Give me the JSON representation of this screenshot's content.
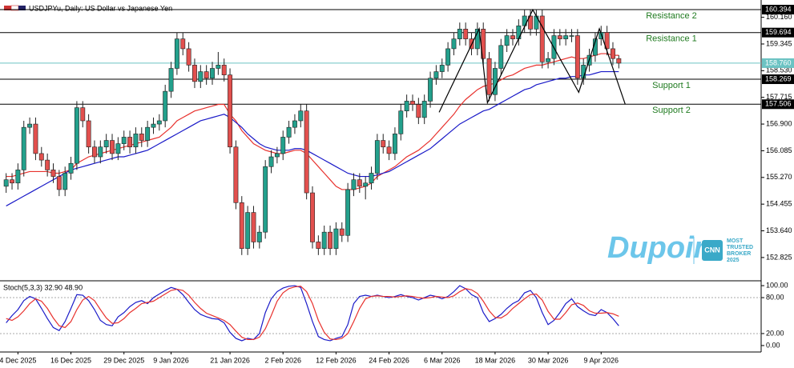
{
  "chart_data": [
    {
      "type": "candlestick",
      "title": "USDJPYu, Daily:  US Dollar vs Japanese Yen",
      "categories": [
        null,
        null,
        "4 Dec 2025",
        null,
        null,
        null,
        null,
        null,
        null,
        null,
        null,
        "16 Dec 2025",
        null,
        null,
        null,
        null,
        null,
        null,
        null,
        null,
        "29 Dec 2025",
        null,
        null,
        null,
        null,
        null,
        null,
        null,
        "9 Jan 2026",
        null,
        null,
        null,
        null,
        null,
        null,
        null,
        null,
        null,
        "21 Jan 2026",
        null,
        null,
        null,
        null,
        null,
        null,
        null,
        null,
        "2 Feb 2026",
        null,
        null,
        null,
        null,
        null,
        null,
        null,
        null,
        "12 Feb 2026",
        null,
        null,
        null,
        null,
        null,
        null,
        null,
        null,
        "24 Feb 2026",
        null,
        null,
        null,
        null,
        null,
        null,
        null,
        null,
        "6 Mar 2026",
        null,
        null,
        null,
        null,
        null,
        null,
        null,
        null,
        "18 Mar 2026",
        null,
        null,
        null,
        null,
        null,
        null,
        null,
        null,
        "30 Mar 2026",
        null,
        null,
        null,
        null,
        null,
        null,
        null,
        null,
        "9 Apr 2026",
        null,
        null,
        null
      ],
      "open": [
        155.0,
        155.2,
        155.1,
        155.5,
        156.8,
        156.9,
        156.0,
        155.8,
        155.5,
        155.3,
        154.9,
        155.4,
        155.7,
        157.4,
        157.0,
        156.2,
        155.9,
        156.2,
        156.4,
        156.0,
        156.3,
        156.5,
        156.2,
        156.6,
        156.4,
        156.8,
        156.9,
        157.0,
        157.9,
        158.6,
        159.5,
        159.2,
        158.7,
        158.2,
        158.5,
        158.3,
        158.6,
        158.7,
        158.4,
        156.2,
        154.5,
        153.1,
        154.2,
        153.3,
        153.6,
        155.6,
        155.9,
        156.0,
        156.5,
        156.8,
        157.0,
        157.3,
        154.8,
        153.3,
        153.1,
        153.6,
        153.1,
        153.7,
        153.5,
        154.9,
        155.2,
        155.0,
        155.1,
        155.4,
        156.4,
        156.2,
        156.0,
        156.6,
        157.3,
        157.6,
        157.5,
        157.1,
        157.6,
        158.3,
        158.5,
        158.7,
        159.2,
        159.5,
        159.8,
        159.5,
        159.2,
        159.8,
        158.9,
        157.8,
        158.6,
        159.3,
        159.6,
        159.5,
        159.9,
        160.2,
        159.8,
        160.2,
        158.8,
        158.9,
        159.6,
        159.5,
        159.6,
        159.6,
        158.3,
        158.7,
        159.0,
        159.5,
        159.7,
        159.2,
        158.9
      ],
      "high": [
        155.4,
        155.4,
        155.7,
        157.0,
        157.1,
        157.1,
        156.2,
        156.0,
        155.7,
        155.5,
        155.6,
        155.9,
        157.6,
        157.6,
        157.2,
        156.4,
        156.4,
        156.6,
        156.6,
        156.5,
        156.7,
        156.7,
        156.8,
        156.8,
        157.0,
        157.1,
        157.2,
        158.1,
        158.8,
        159.7,
        159.7,
        159.4,
        158.9,
        158.7,
        158.7,
        158.8,
        159.1,
        158.9,
        158.6,
        156.4,
        154.7,
        154.4,
        154.4,
        153.8,
        155.8,
        156.1,
        156.2,
        156.7,
        157.0,
        157.2,
        157.5,
        157.5,
        155.0,
        153.5,
        153.8,
        153.8,
        153.9,
        153.9,
        155.1,
        155.4,
        155.4,
        155.3,
        155.6,
        156.6,
        156.6,
        156.4,
        156.8,
        157.5,
        157.8,
        157.8,
        157.7,
        157.8,
        158.5,
        158.7,
        158.9,
        159.4,
        159.7,
        160.0,
        160.0,
        159.7,
        160.0,
        160.0,
        159.1,
        158.8,
        159.5,
        159.8,
        159.8,
        160.1,
        160.4,
        160.4,
        160.4,
        160.4,
        159.1,
        159.8,
        159.8,
        159.8,
        159.8,
        159.8,
        158.9,
        159.2,
        159.7,
        159.9,
        159.9,
        159.4,
        159.0
      ],
      "low": [
        154.8,
        154.9,
        154.9,
        155.3,
        156.6,
        155.8,
        155.6,
        155.3,
        155.1,
        154.7,
        154.7,
        155.2,
        155.5,
        156.8,
        156.0,
        155.7,
        155.7,
        156.0,
        155.8,
        155.8,
        156.1,
        156.0,
        156.0,
        156.2,
        156.2,
        156.6,
        156.7,
        156.8,
        157.7,
        158.4,
        159.0,
        158.5,
        158.0,
        158.0,
        158.1,
        158.1,
        158.4,
        158.2,
        156.0,
        154.3,
        152.9,
        152.9,
        153.1,
        153.1,
        153.4,
        155.4,
        155.7,
        155.8,
        156.3,
        156.6,
        156.8,
        154.6,
        153.1,
        152.9,
        152.9,
        152.9,
        152.9,
        153.3,
        153.3,
        154.7,
        154.8,
        154.6,
        154.9,
        155.2,
        156.0,
        155.8,
        155.8,
        156.4,
        157.1,
        157.3,
        156.9,
        156.9,
        157.4,
        158.1,
        158.3,
        158.5,
        159.0,
        159.3,
        159.3,
        159.0,
        159.0,
        158.7,
        157.6,
        157.6,
        158.4,
        159.1,
        159.3,
        159.3,
        159.7,
        159.6,
        159.6,
        158.6,
        158.6,
        158.7,
        159.3,
        159.3,
        159.4,
        158.1,
        158.1,
        158.5,
        158.8,
        159.3,
        159.0,
        158.7,
        158.6
      ],
      "close": [
        155.2,
        155.1,
        155.5,
        156.8,
        156.9,
        156.0,
        155.8,
        155.5,
        155.3,
        154.9,
        155.4,
        155.7,
        157.4,
        157.0,
        156.2,
        155.9,
        156.2,
        156.4,
        156.0,
        156.3,
        156.5,
        156.2,
        156.6,
        156.4,
        156.8,
        156.9,
        157.0,
        157.9,
        158.6,
        159.5,
        159.2,
        158.7,
        158.2,
        158.5,
        158.3,
        158.6,
        158.7,
        158.4,
        156.2,
        154.5,
        153.1,
        154.2,
        153.3,
        153.6,
        155.6,
        155.9,
        156.0,
        156.5,
        156.8,
        157.0,
        157.3,
        154.8,
        153.3,
        153.1,
        153.6,
        153.1,
        153.7,
        153.5,
        154.9,
        155.2,
        155.0,
        155.1,
        155.4,
        156.4,
        156.2,
        156.0,
        156.6,
        157.3,
        157.6,
        157.5,
        157.1,
        157.6,
        158.3,
        158.5,
        158.7,
        159.2,
        159.5,
        159.8,
        159.5,
        159.2,
        159.8,
        158.9,
        157.8,
        158.6,
        159.3,
        159.6,
        159.5,
        159.9,
        160.2,
        159.8,
        160.2,
        158.8,
        158.9,
        159.6,
        159.5,
        159.6,
        159.6,
        158.3,
        158.7,
        159.0,
        159.5,
        159.7,
        159.2,
        158.9,
        158.76
      ],
      "up_color": "#23a08c",
      "down_color": "#e2504e",
      "series": [
        {
          "color": "#e8322e",
          "values": [
            155.3,
            155.3,
            155.35,
            155.4,
            155.45,
            155.45,
            155.45,
            155.45,
            155.4,
            155.4,
            155.45,
            155.5,
            155.7,
            155.8,
            155.9,
            155.95,
            156.0,
            156.05,
            156.1,
            156.15,
            156.2,
            156.25,
            156.3,
            156.35,
            156.4,
            156.45,
            156.5,
            156.65,
            156.8,
            157.0,
            157.1,
            157.2,
            157.3,
            157.35,
            157.4,
            157.45,
            157.5,
            157.5,
            157.2,
            157.0,
            156.7,
            156.5,
            156.3,
            156.2,
            156.1,
            156.05,
            156.0,
            156.0,
            156.05,
            156.1,
            156.1,
            156.0,
            155.8,
            155.6,
            155.4,
            155.2,
            155.0,
            154.9,
            154.9,
            154.9,
            154.95,
            155.0,
            155.1,
            155.3,
            155.4,
            155.5,
            155.6,
            155.75,
            155.9,
            156.0,
            156.1,
            156.25,
            156.4,
            156.6,
            156.8,
            157.0,
            157.2,
            157.45,
            157.65,
            157.8,
            157.95,
            158.05,
            158.1,
            158.15,
            158.25,
            158.35,
            158.4,
            158.5,
            158.6,
            158.65,
            158.7,
            158.7,
            158.75,
            158.8,
            158.85,
            158.9,
            158.95,
            158.9,
            158.9,
            158.95,
            159.0,
            159.05,
            159.05,
            159.0,
            159.0
          ]
        },
        {
          "color": "#1a1ac8",
          "values": [
            154.4,
            154.5,
            154.6,
            154.7,
            154.8,
            154.9,
            155.0,
            155.1,
            155.2,
            155.3,
            155.4,
            155.5,
            155.55,
            155.6,
            155.65,
            155.7,
            155.75,
            155.8,
            155.85,
            155.9,
            155.9,
            155.95,
            156.0,
            156.05,
            156.1,
            156.2,
            156.3,
            156.4,
            156.5,
            156.6,
            156.7,
            156.8,
            156.9,
            157.0,
            157.05,
            157.1,
            157.15,
            157.2,
            157.1,
            156.95,
            156.8,
            156.6,
            156.45,
            156.3,
            156.2,
            156.15,
            156.1,
            156.1,
            156.1,
            156.15,
            156.15,
            156.1,
            156.0,
            155.9,
            155.8,
            155.7,
            155.6,
            155.5,
            155.4,
            155.35,
            155.3,
            155.3,
            155.3,
            155.35,
            155.4,
            155.45,
            155.55,
            155.65,
            155.75,
            155.85,
            155.95,
            156.05,
            156.15,
            156.3,
            156.45,
            156.6,
            156.75,
            156.9,
            157.0,
            157.1,
            157.2,
            157.3,
            157.35,
            157.45,
            157.55,
            157.65,
            157.75,
            157.85,
            157.95,
            158.0,
            158.1,
            158.15,
            158.2,
            158.25,
            158.3,
            158.3,
            158.35,
            158.35,
            158.4,
            158.4,
            158.45,
            158.5,
            158.5,
            158.5,
            158.5
          ]
        }
      ],
      "ylim": [
        152.114,
        160.688
      ],
      "yticks": [
        {
          "value": 160.16,
          "label": "160.160"
        },
        {
          "value": 159.345,
          "label": "159.345"
        },
        {
          "value": 158.53,
          "label": "158.530"
        },
        {
          "value": 157.715,
          "label": "157.715"
        },
        {
          "value": 156.9,
          "label": "156.900"
        },
        {
          "value": 156.085,
          "label": "156.085"
        },
        {
          "value": 155.27,
          "label": "155.270"
        },
        {
          "value": 154.455,
          "label": "154.455"
        },
        {
          "value": 153.64,
          "label": "153.640"
        },
        {
          "value": 152.825,
          "label": "152.825"
        }
      ],
      "levels": [
        {
          "name": "Resistance 2",
          "value": 160.394,
          "label": "160.394"
        },
        {
          "name": "Resistance 1",
          "value": 159.694,
          "label": "159.694"
        },
        {
          "name": "Support 1",
          "value": 158.269,
          "label": "158.269"
        },
        {
          "name": "Support 2",
          "value": 157.506,
          "label": "157.506"
        }
      ],
      "level_color": "#000000",
      "level_text_color": "#1f7a1f",
      "current": {
        "value": 158.76,
        "label": "158.760",
        "color": "#6cc3c3"
      },
      "pattern": {
        "color": "#000000",
        "x": [
          73.5,
          80.3,
          81.7,
          89.4,
          97.2,
          100.7,
          105.1
        ],
        "y": [
          157.26,
          159.81,
          157.55,
          160.39,
          157.87,
          159.81,
          157.5
        ]
      },
      "logo": {
        "name": "Dupoin",
        "badge": "CNN",
        "lines": [
          "MOST",
          "TRUSTED",
          "BROKER",
          "2025"
        ]
      }
    },
    {
      "type": "line",
      "title": "Stoch(5,3,3) 32.90 48.90",
      "series": [
        {
          "color": "#1a1ac8",
          "values": [
            38,
            50,
            60,
            75,
            82,
            78,
            62,
            45,
            30,
            25,
            40,
            62,
            85,
            84,
            75,
            60,
            42,
            35,
            33,
            48,
            55,
            65,
            72,
            75,
            70,
            80,
            86,
            92,
            97,
            94,
            85,
            72,
            60,
            52,
            48,
            45,
            44,
            38,
            22,
            12,
            8,
            12,
            10,
            20,
            55,
            78,
            90,
            96,
            99,
            100,
            97,
            70,
            40,
            15,
            10,
            8,
            12,
            15,
            35,
            70,
            82,
            84,
            82,
            84,
            82,
            80,
            82,
            85,
            82,
            80,
            76,
            80,
            84,
            82,
            78,
            82,
            90,
            100,
            95,
            85,
            80,
            55,
            40,
            45,
            52,
            62,
            70,
            75,
            88,
            92,
            80,
            55,
            35,
            42,
            55,
            70,
            78,
            65,
            58,
            52,
            50,
            60,
            55,
            45,
            32.9
          ]
        },
        {
          "color": "#e8322e",
          "values": [
            45,
            42,
            48,
            58,
            70,
            78,
            74,
            62,
            46,
            33,
            30,
            40,
            60,
            76,
            82,
            75,
            60,
            46,
            37,
            38,
            45,
            55,
            62,
            70,
            72,
            74,
            80,
            86,
            92,
            94,
            92,
            84,
            72,
            62,
            54,
            50,
            46,
            42,
            35,
            24,
            14,
            10,
            10,
            14,
            28,
            50,
            74,
            88,
            95,
            98,
            99,
            90,
            70,
            42,
            22,
            11,
            10,
            12,
            20,
            40,
            62,
            78,
            82,
            83,
            82,
            82,
            81,
            82,
            83,
            82,
            80,
            79,
            80,
            82,
            81,
            80,
            83,
            90,
            95,
            93,
            87,
            74,
            58,
            47,
            46,
            52,
            62,
            70,
            78,
            85,
            86,
            76,
            57,
            44,
            44,
            55,
            68,
            71,
            67,
            58,
            54,
            54,
            55,
            53,
            48.9
          ]
        }
      ],
      "ylim": [
        -10.8,
        108.1
      ],
      "yticks": [
        {
          "value": 100,
          "label": "100.00"
        },
        {
          "value": 80,
          "label": "80.00"
        },
        {
          "value": 20,
          "label": "20.00"
        },
        {
          "value": 0,
          "label": "0.00"
        }
      ],
      "dashed_ticks": [
        80,
        20
      ]
    }
  ]
}
